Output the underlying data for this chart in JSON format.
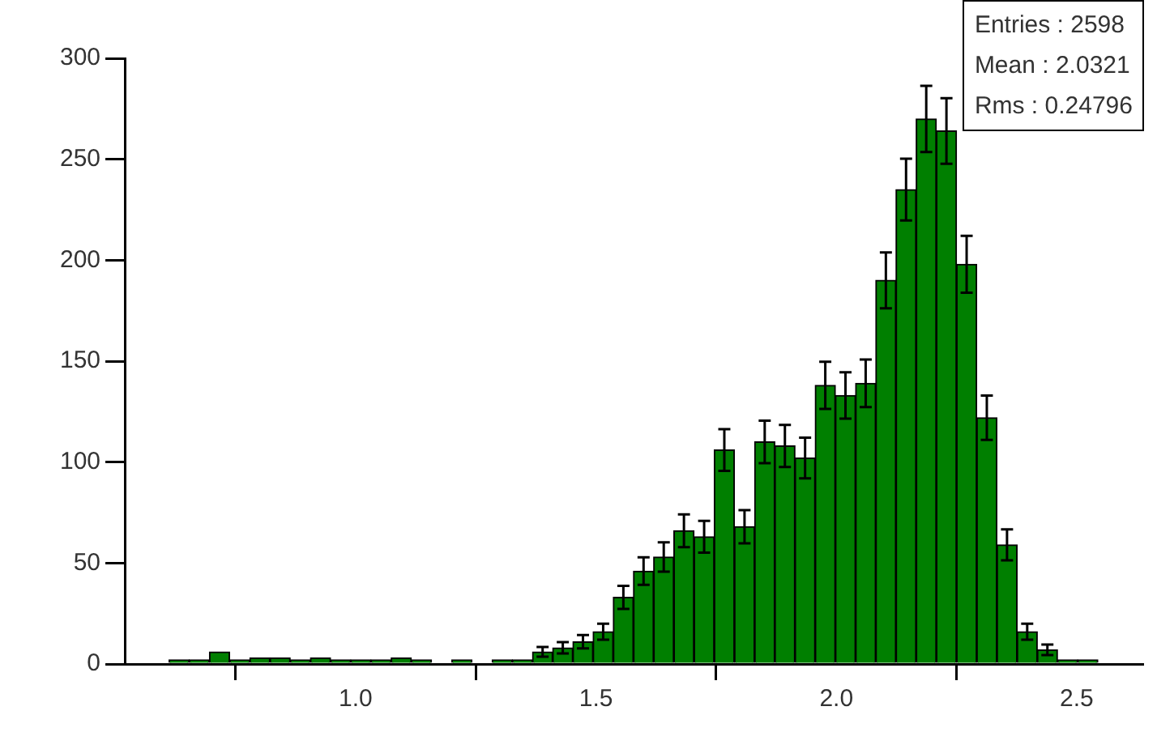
{
  "chart_data": {
    "type": "histogram",
    "bins": [
      0.528,
      0.57,
      0.612,
      0.654,
      0.696,
      0.738,
      0.78,
      0.822,
      0.864,
      0.906,
      0.948,
      0.99,
      1.032,
      1.074,
      1.116,
      1.158,
      1.2,
      1.242,
      1.284,
      1.326,
      1.368,
      1.41,
      1.452,
      1.494,
      1.536,
      1.578,
      1.62,
      1.662,
      1.704,
      1.746,
      1.788,
      1.83,
      1.872,
      1.914,
      1.956,
      1.998,
      2.04,
      2.082,
      2.124,
      2.166,
      2.208,
      2.25,
      2.292,
      2.334,
      2.376,
      2.418,
      2.46,
      2.502,
      2.544,
      2.586,
      2.628
    ],
    "values": [
      0,
      0,
      2,
      2,
      6,
      2,
      3,
      3,
      2,
      3,
      2,
      2,
      2,
      3,
      2,
      0,
      2,
      0,
      2,
      2,
      6,
      8,
      11,
      16,
      33,
      46,
      53,
      66,
      63,
      106,
      68,
      110,
      108,
      102,
      138,
      133,
      139,
      190,
      235,
      270,
      264,
      198,
      122,
      59,
      16,
      7,
      2,
      2,
      0,
      0
    ],
    "errors": [
      null,
      null,
      null,
      null,
      null,
      null,
      null,
      null,
      null,
      null,
      null,
      null,
      null,
      null,
      null,
      null,
      null,
      null,
      null,
      null,
      2.4,
      2.8,
      3.3,
      4,
      5.7,
      6.8,
      7.3,
      8.1,
      7.9,
      10.3,
      8.2,
      10.5,
      10.4,
      10.1,
      11.7,
      11.5,
      11.8,
      13.8,
      15.3,
      16.4,
      16.2,
      14.1,
      11,
      7.7,
      4,
      2.6,
      null,
      null,
      null,
      null
    ],
    "color": "#007f00",
    "xlim": [
      0.52,
      2.64
    ],
    "xticks": [
      {
        "value": 1,
        "label": "1.0"
      },
      {
        "value": 1.5,
        "label": "1.5"
      },
      {
        "value": 2,
        "label": "2.0"
      },
      {
        "value": 2.5,
        "label": "2.5"
      }
    ],
    "ylim": [
      0,
      300
    ],
    "yticks": [
      0,
      50,
      100,
      150,
      200,
      250,
      300
    ],
    "annotations": [
      "Entries :  2598",
      "Mean :  2.0321",
      "Rms : 0.24796"
    ]
  }
}
